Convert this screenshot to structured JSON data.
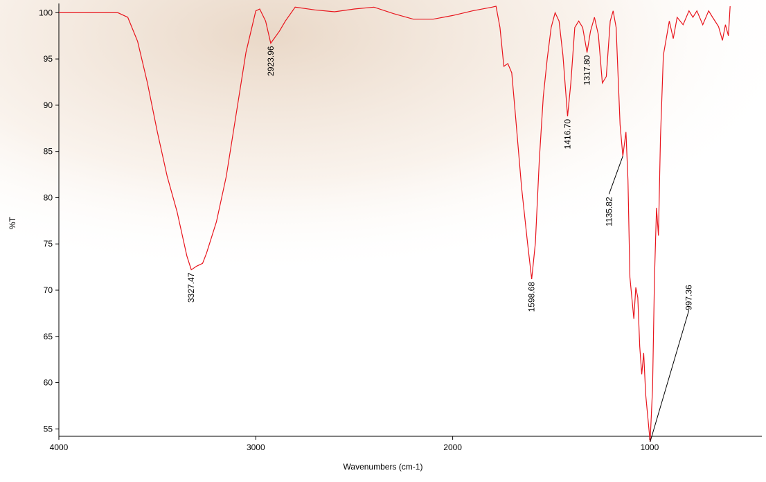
{
  "chart_data": {
    "type": "line",
    "xlabel": "Wavenumbers (cm-1)",
    "ylabel": "%T",
    "color": "#e8141c",
    "xlim": [
      4000,
      430
    ],
    "ylim": [
      54.2,
      101
    ],
    "xticks": [
      4000,
      3000,
      2000,
      1000
    ],
    "yticks": [
      55,
      60,
      65,
      70,
      75,
      80,
      85,
      90,
      95,
      100
    ],
    "x": [
      4000,
      3700,
      3650,
      3600,
      3550,
      3500,
      3450,
      3400,
      3350,
      3327.47,
      3300,
      3270,
      3250,
      3200,
      3150,
      3100,
      3050,
      3000,
      2980,
      2950,
      2923.96,
      2880,
      2850,
      2800,
      2700,
      2600,
      2500,
      2400,
      2300,
      2200,
      2100,
      2000,
      1900,
      1800,
      1780,
      1760,
      1740,
      1720,
      1700,
      1680,
      1650,
      1620,
      1598.68,
      1580,
      1560,
      1540,
      1520,
      1500,
      1480,
      1460,
      1440,
      1416.7,
      1400,
      1380,
      1360,
      1340,
      1317.8,
      1300,
      1280,
      1260,
      1240,
      1220,
      1200,
      1185,
      1170,
      1150,
      1135.82,
      1120,
      1110,
      1100,
      1080,
      1070,
      1060,
      1050,
      1040,
      1030,
      1020,
      997.36,
      985,
      975,
      965,
      955,
      945,
      930,
      900,
      880,
      860,
      830,
      800,
      780,
      760,
      730,
      700,
      680,
      650,
      630,
      615,
      600,
      591
    ],
    "values": [
      100,
      100,
      99.5,
      96.9,
      92.4,
      87.1,
      82.3,
      78.5,
      73.7,
      72.2,
      72.6,
      72.9,
      74,
      77.4,
      82.3,
      89,
      95.7,
      100.2,
      100.4,
      99.1,
      96.7,
      98,
      99.1,
      100.6,
      100.3,
      100.1,
      100.4,
      100.6,
      99.9,
      99.3,
      99.3,
      99.7,
      100.2,
      100.6,
      100.7,
      98.4,
      94.2,
      94.5,
      93.5,
      88.6,
      81.1,
      75.1,
      71.2,
      75.1,
      84.1,
      90.9,
      95,
      98.4,
      100,
      99.1,
      95.4,
      88.8,
      92.4,
      98.4,
      99.1,
      98.4,
      95.7,
      98,
      99.5,
      97.6,
      92.4,
      93.1,
      99.1,
      100.2,
      98.4,
      87.9,
      84.5,
      87.1,
      81.9,
      71.4,
      66.9,
      70.3,
      69.2,
      63.9,
      60.9,
      63.2,
      58.7,
      53.6,
      59.4,
      71.4,
      78.9,
      75.9,
      86.4,
      95.4,
      99.1,
      97.2,
      99.5,
      98.7,
      100.2,
      99.5,
      100.2,
      98.7,
      100.2,
      99.5,
      98.5,
      97,
      98.7,
      97.5,
      100.7
    ],
    "peak_labels": [
      {
        "value": 3327.47,
        "label": "3327.47"
      },
      {
        "value": 2923.96,
        "label": "2923.96"
      },
      {
        "value": 1598.68,
        "label": "1598.68"
      },
      {
        "value": 1416.7,
        "label": "1416.70"
      },
      {
        "value": 1317.8,
        "label": "1317.80"
      },
      {
        "value": 1135.82,
        "label": "1135.82"
      },
      {
        "value": 997.36,
        "label": "997.36"
      }
    ]
  }
}
